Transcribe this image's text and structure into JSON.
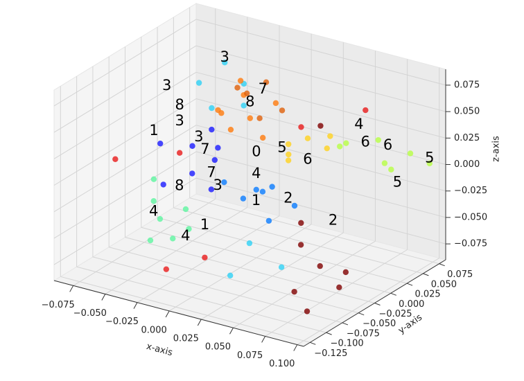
{
  "chart_data": {
    "type": "scatter3d",
    "x_label": "x-axis",
    "y_label": "y-axis",
    "z_label": "z-axis",
    "xlim": [
      -0.09,
      0.105
    ],
    "ylim": [
      -0.135,
      0.085
    ],
    "zlim": [
      -0.09,
      0.09
    ],
    "xticks": [
      {
        "value": -0.075,
        "label": "−0.075"
      },
      {
        "value": -0.05,
        "label": "−0.050"
      },
      {
        "value": -0.025,
        "label": "−0.025"
      },
      {
        "value": 0,
        "label": "0.000"
      },
      {
        "value": 0.025,
        "label": "0.025"
      },
      {
        "value": 0.05,
        "label": "0.050"
      },
      {
        "value": 0.075,
        "label": "0.075"
      },
      {
        "value": 0.1,
        "label": "0.100"
      }
    ],
    "yticks": [
      {
        "value": -0.125,
        "label": "−0.125"
      },
      {
        "value": -0.1,
        "label": "−0.100"
      },
      {
        "value": -0.075,
        "label": "−0.075"
      },
      {
        "value": -0.05,
        "label": "−0.050"
      },
      {
        "value": -0.025,
        "label": "−0.025"
      },
      {
        "value": 0,
        "label": "0.000"
      },
      {
        "value": 0.025,
        "label": "0.025"
      },
      {
        "value": 0.05,
        "label": "0.050"
      },
      {
        "value": 0.075,
        "label": "0.075"
      }
    ],
    "zticks": [
      {
        "value": -0.075,
        "label": "−0.075"
      },
      {
        "value": -0.05,
        "label": "−0.050"
      },
      {
        "value": -0.025,
        "label": "−0.025"
      },
      {
        "value": 0,
        "label": "0.000"
      },
      {
        "value": 0.025,
        "label": "0.025"
      },
      {
        "value": 0.05,
        "label": "0.050"
      },
      {
        "value": 0.075,
        "label": "0.075"
      }
    ],
    "grid": true,
    "series": [
      {
        "color": "#1a1aff",
        "x": [
          -0.06,
          -0.045,
          -0.03,
          -0.02,
          -0.035,
          -0.01,
          -0.05,
          -0.025
        ],
        "y": [
          -0.03,
          -0.01,
          -0.04,
          -0.02,
          0.0,
          -0.05,
          -0.045,
          -0.015
        ],
        "z": [
          0.01,
          0.005,
          -0.005,
          0.015,
          0.02,
          -0.01,
          -0.02,
          0.0
        ]
      },
      {
        "color": "#0a7cff",
        "x": [
          0.0,
          0.02,
          0.035,
          0.01,
          0.04,
          0.025,
          0.05
        ],
        "y": [
          -0.05,
          -0.03,
          -0.045,
          -0.02,
          -0.06,
          -0.07,
          -0.04
        ],
        "z": [
          0.0,
          -0.01,
          0.005,
          -0.015,
          -0.02,
          0.0,
          -0.01
        ]
      },
      {
        "color": "#2ed1f5",
        "x": [
          -0.06,
          -0.05,
          -0.03,
          -0.04,
          -0.02,
          0.04,
          0.06,
          0.03
        ],
        "y": [
          0.03,
          0.05,
          0.04,
          0.01,
          0.02,
          -0.09,
          -0.08,
          -0.1
        ],
        "z": [
          0.045,
          0.06,
          0.05,
          0.035,
          0.04,
          -0.03,
          -0.05,
          -0.06
        ]
      },
      {
        "color": "#5ef5a0",
        "x": [
          -0.05,
          -0.04,
          -0.03,
          -0.02,
          -0.06,
          -0.025,
          -0.045
        ],
        "y": [
          -0.06,
          -0.07,
          -0.05,
          -0.065,
          -0.04,
          -0.08,
          -0.075
        ],
        "z": [
          -0.03,
          -0.04,
          -0.035,
          -0.045,
          -0.02,
          -0.05,
          -0.06
        ]
      },
      {
        "color": "#b8ff45",
        "x": [
          0.05,
          0.07,
          0.08,
          0.09,
          0.06,
          0.1,
          0.075
        ],
        "y": [
          0.03,
          0.05,
          0.04,
          0.06,
          0.02,
          0.07,
          0.06
        ],
        "z": [
          0.02,
          0.025,
          0.01,
          0.015,
          0.03,
          0.005,
          -0.005
        ]
      },
      {
        "color": "#ffd21f",
        "x": [
          0.02,
          0.03,
          0.04,
          0.025,
          0.045,
          0.015
        ],
        "y": [
          0.01,
          0.02,
          0.03,
          0.0,
          0.025,
          0.02
        ],
        "z": [
          0.02,
          0.025,
          0.015,
          0.01,
          0.03,
          0.005
        ]
      },
      {
        "color": "#ff7a0d",
        "x": [
          -0.03,
          -0.02,
          -0.01,
          0.0,
          -0.025,
          -0.015,
          0.005,
          -0.035
        ],
        "y": [
          0.0,
          0.02,
          0.01,
          0.03,
          0.025,
          -0.01,
          0.0,
          0.015
        ],
        "z": [
          0.04,
          0.05,
          0.035,
          0.045,
          0.06,
          0.03,
          0.025,
          0.03
        ]
      },
      {
        "color": "#e0600a",
        "x": [
          -0.015,
          -0.005,
          0.01,
          -0.03,
          0.0
        ],
        "y": [
          0.015,
          0.025,
          0.02,
          0.03,
          0.005
        ],
        "z": [
          0.055,
          0.065,
          0.045,
          0.05,
          0.04
        ]
      },
      {
        "color": "#e81a1a",
        "x": [
          -0.08,
          -0.06,
          0.0,
          0.04,
          -0.02,
          0.06
        ],
        "y": [
          -0.06,
          0.0,
          -0.08,
          -0.01,
          -0.1,
          0.05
        ],
        "z": [
          0.0,
          -0.01,
          -0.06,
          0.05,
          -0.07,
          0.05
        ]
      },
      {
        "color": "#800000",
        "x": [
          0.06,
          0.08,
          0.09,
          0.07,
          0.1,
          0.05,
          0.085,
          0.04
        ],
        "y": [
          -0.05,
          -0.06,
          -0.04,
          -0.08,
          -0.07,
          -0.03,
          -0.09,
          0.02
        ],
        "z": [
          -0.04,
          -0.05,
          -0.06,
          -0.07,
          -0.06,
          -0.03,
          -0.08,
          0.04
        ]
      }
    ],
    "labels": [
      {
        "text": "3",
        "x": -0.045,
        "y": 0.04,
        "z": 0.07
      },
      {
        "text": "3",
        "x": -0.07,
        "y": 0.0,
        "z": 0.05
      },
      {
        "text": "7",
        "x": -0.005,
        "y": 0.02,
        "z": 0.06
      },
      {
        "text": "8",
        "x": -0.01,
        "y": 0.01,
        "z": 0.05
      },
      {
        "text": "8",
        "x": -0.06,
        "y": 0.0,
        "z": 0.035
      },
      {
        "text": "3",
        "x": -0.06,
        "y": 0.0,
        "z": 0.02
      },
      {
        "text": "1",
        "x": -0.07,
        "y": -0.02,
        "z": 0.015
      },
      {
        "text": "3",
        "x": -0.04,
        "y": -0.01,
        "z": 0.015
      },
      {
        "text": "7",
        "x": -0.03,
        "y": -0.02,
        "z": 0.01
      },
      {
        "text": "0",
        "x": 0.0,
        "y": 0.0,
        "z": 0.01
      },
      {
        "text": "5",
        "x": 0.015,
        "y": 0.01,
        "z": 0.015
      },
      {
        "text": "4",
        "x": 0.06,
        "y": 0.04,
        "z": 0.04
      },
      {
        "text": "6",
        "x": 0.065,
        "y": 0.04,
        "z": 0.025
      },
      {
        "text": "6",
        "x": 0.08,
        "y": 0.045,
        "z": 0.025
      },
      {
        "text": "5",
        "x": 0.1,
        "y": 0.07,
        "z": 0.01
      },
      {
        "text": "5",
        "x": 0.09,
        "y": 0.04,
        "z": -0.005
      },
      {
        "text": "2",
        "x": 0.07,
        "y": -0.02,
        "z": -0.025
      },
      {
        "text": "2",
        "x": 0.04,
        "y": -0.03,
        "z": -0.01
      },
      {
        "text": "1",
        "x": 0.02,
        "y": -0.04,
        "z": -0.015
      },
      {
        "text": "3",
        "x": -0.01,
        "y": -0.04,
        "z": -0.01
      },
      {
        "text": "7",
        "x": -0.02,
        "y": -0.03,
        "z": -0.005
      },
      {
        "text": "8",
        "x": -0.04,
        "y": -0.04,
        "z": -0.02
      },
      {
        "text": "4",
        "x": -0.05,
        "y": -0.06,
        "z": -0.04
      },
      {
        "text": "4",
        "x": -0.02,
        "y": -0.07,
        "z": -0.05
      },
      {
        "text": "1",
        "x": -0.01,
        "y": -0.06,
        "z": -0.04
      },
      {
        "text": "6",
        "x": 0.035,
        "y": 0.01,
        "z": 0.01
      },
      {
        "text": "4",
        "x": 0.01,
        "y": -0.02,
        "z": 0.0
      }
    ]
  }
}
